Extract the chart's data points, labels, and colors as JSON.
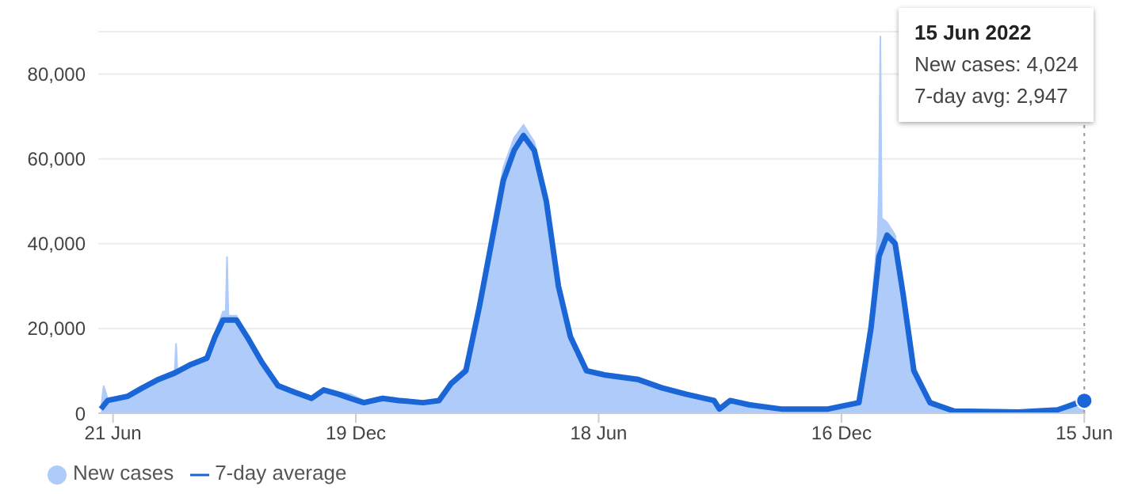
{
  "chart_data": {
    "type": "area",
    "xlim": [
      "2020-06-10",
      "2022-06-16"
    ],
    "xticks": [
      {
        "value": "2020-06-21",
        "label": "21 Jun"
      },
      {
        "value": "2020-12-19",
        "label": "19 Dec"
      },
      {
        "value": "2021-06-18",
        "label": "18 Jun"
      },
      {
        "value": "2021-12-16",
        "label": "16 Dec"
      },
      {
        "value": "2022-06-15",
        "label": "15 Jun"
      }
    ],
    "ylim": [
      0,
      90000
    ],
    "yticks": [
      {
        "value": 0,
        "label": "0"
      },
      {
        "value": 20000,
        "label": "20,000"
      },
      {
        "value": 40000,
        "label": "40,000"
      },
      {
        "value": 60000,
        "label": "60,000"
      },
      {
        "value": 80000,
        "label": "80,000"
      }
    ],
    "series": [
      {
        "name": "New cases",
        "color": "#aecbfa",
        "x": [
          "2020-06-12",
          "2020-06-14",
          "2020-06-17",
          "2020-07-02",
          "2020-07-13",
          "2020-07-25",
          "2020-08-06",
          "2020-08-07",
          "2020-08-08",
          "2020-08-09",
          "2020-08-18",
          "2020-08-30",
          "2020-09-05",
          "2020-09-11",
          "2020-09-13",
          "2020-09-14",
          "2020-09-15",
          "2020-09-21",
          "2020-09-29",
          "2020-10-10",
          "2020-10-22",
          "2020-11-03",
          "2020-11-16",
          "2020-11-25",
          "2020-12-06",
          "2020-12-15",
          "2020-12-25",
          "2021-01-08",
          "2021-01-20",
          "2021-02-07",
          "2021-02-19",
          "2021-02-28",
          "2021-03-11",
          "2021-03-21",
          "2021-03-30",
          "2021-04-08",
          "2021-04-16",
          "2021-04-23",
          "2021-05-01",
          "2021-05-10",
          "2021-05-19",
          "2021-05-28",
          "2021-06-09",
          "2021-06-23",
          "2021-07-17",
          "2021-08-04",
          "2021-08-22",
          "2021-09-12",
          "2021-09-16",
          "2021-09-24",
          "2021-10-08",
          "2021-11-01",
          "2021-12-06",
          "2021-12-29",
          "2022-01-07",
          "2022-01-12",
          "2022-01-13",
          "2022-01-14",
          "2022-01-15",
          "2022-01-19",
          "2022-01-25",
          "2022-01-31",
          "2022-02-08",
          "2022-02-20",
          "2022-03-10",
          "2022-04-27",
          "2022-05-26",
          "2022-06-15"
        ],
        "values": [
          1000,
          6500,
          3500,
          4500,
          6500,
          8500,
          10000,
          16500,
          10000,
          10000,
          12000,
          13500,
          19000,
          24000,
          24000,
          37000,
          23000,
          23000,
          18000,
          12500,
          7000,
          5500,
          4000,
          6000,
          5000,
          4500,
          3000,
          4000,
          3500,
          2800,
          3200,
          7500,
          11000,
          27000,
          43000,
          58000,
          65000,
          68000,
          64000,
          52000,
          32000,
          19000,
          10500,
          9500,
          8500,
          6500,
          5000,
          3300,
          1200,
          3300,
          2200,
          1200,
          1100,
          2800,
          24000,
          42000,
          55000,
          89000,
          46000,
          45000,
          42000,
          29000,
          10500,
          2800,
          600,
          400,
          900,
          4024
        ]
      },
      {
        "name": "7-day average",
        "type": "line",
        "color": "#1a66d6",
        "x": [
          "2020-06-12",
          "2020-06-17",
          "2020-07-02",
          "2020-07-13",
          "2020-07-25",
          "2020-08-06",
          "2020-08-18",
          "2020-08-30",
          "2020-09-05",
          "2020-09-11",
          "2020-09-21",
          "2020-09-29",
          "2020-10-10",
          "2020-10-22",
          "2020-11-03",
          "2020-11-16",
          "2020-11-25",
          "2020-12-06",
          "2020-12-15",
          "2020-12-25",
          "2021-01-08",
          "2021-01-20",
          "2021-02-07",
          "2021-02-19",
          "2021-02-28",
          "2021-03-11",
          "2021-03-21",
          "2021-03-30",
          "2021-04-08",
          "2021-04-16",
          "2021-04-23",
          "2021-05-01",
          "2021-05-10",
          "2021-05-19",
          "2021-05-28",
          "2021-06-09",
          "2021-06-23",
          "2021-07-17",
          "2021-08-04",
          "2021-08-22",
          "2021-09-12",
          "2021-09-16",
          "2021-09-24",
          "2021-10-08",
          "2021-11-01",
          "2021-12-06",
          "2021-12-29",
          "2022-01-07",
          "2022-01-13",
          "2022-01-19",
          "2022-01-25",
          "2022-01-31",
          "2022-02-08",
          "2022-02-20",
          "2022-03-10",
          "2022-04-27",
          "2022-05-26",
          "2022-06-15"
        ],
        "values": [
          1000,
          3000,
          4000,
          6000,
          8000,
          9500,
          11500,
          13000,
          18000,
          22000,
          22000,
          18000,
          12000,
          6500,
          5000,
          3500,
          5500,
          4500,
          3500,
          2500,
          3500,
          3000,
          2500,
          3000,
          7000,
          10000,
          25000,
          40000,
          55000,
          62000,
          65500,
          62000,
          50000,
          30000,
          18000,
          10000,
          9000,
          8000,
          6000,
          4500,
          3000,
          1000,
          3000,
          2000,
          1000,
          1000,
          2500,
          20000,
          37000,
          42000,
          40000,
          28000,
          10000,
          2500,
          500,
          300,
          800,
          2947
        ]
      }
    ],
    "ref_lines": [
      {
        "axis": "x",
        "value": "2022-06-15",
        "color": "#999999",
        "line_style": "dotted"
      }
    ],
    "annotations": [
      "15 Jun 2022",
      "New cases: 4,024",
      "7-day avg: 2,947"
    ],
    "grid": "y",
    "legend": "bottom left",
    "marker": "none",
    "line_style": "solid"
  }
}
